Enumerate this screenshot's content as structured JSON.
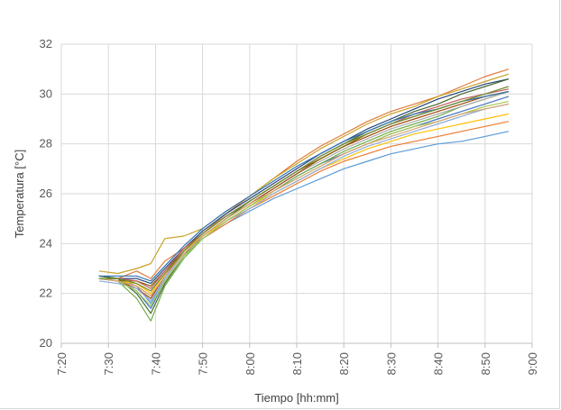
{
  "chart_data": {
    "type": "line",
    "title": "",
    "xlabel": "Tiempo [hh:mm]",
    "ylabel": "Temperatura [°C]",
    "x_ticks": [
      "7:20",
      "7:30",
      "7:40",
      "7:50",
      "8:00",
      "8:10",
      "8:20",
      "8:30",
      "8:40",
      "8:50",
      "9:00"
    ],
    "y_ticks": [
      "20",
      "22",
      "24",
      "26",
      "28",
      "30",
      "32"
    ],
    "xlim": [
      "7:20",
      "9:00"
    ],
    "ylim": [
      20,
      32
    ],
    "grid": "vertical-and-horizontal",
    "legend": "none",
    "x": [
      "7:28",
      "7:32",
      "7:36",
      "7:39",
      "7:42",
      "7:46",
      "7:50",
      "7:55",
      "8:00",
      "8:05",
      "8:10",
      "8:15",
      "8:20",
      "8:25",
      "8:30",
      "8:35",
      "8:40",
      "8:45",
      "8:50",
      "8:55"
    ],
    "series": [
      {
        "color": "#e07b39",
        "values": [
          22.7,
          22.6,
          22.9,
          22.6,
          23.3,
          23.8,
          24.4,
          25.2,
          25.9,
          26.6,
          27.3,
          27.9,
          28.4,
          28.9,
          29.3,
          29.6,
          29.9,
          30.3,
          30.7,
          31.0
        ]
      },
      {
        "color": "#c9a227",
        "values": [
          22.9,
          22.8,
          23.0,
          23.2,
          24.2,
          24.3,
          24.6,
          25.3,
          25.9,
          26.6,
          27.2,
          27.8,
          28.3,
          28.8,
          29.2,
          29.5,
          29.9,
          30.2,
          30.5,
          30.8
        ]
      },
      {
        "color": "#4472c4",
        "values": [
          22.6,
          22.5,
          22.1,
          21.4,
          22.5,
          23.5,
          24.2,
          24.9,
          25.5,
          26.1,
          26.7,
          27.2,
          27.6,
          28.0,
          28.4,
          28.7,
          29.0,
          29.3,
          29.6,
          29.9
        ]
      },
      {
        "color": "#70ad47",
        "values": [
          22.6,
          22.5,
          21.8,
          20.9,
          22.3,
          23.4,
          24.2,
          24.9,
          25.5,
          26.1,
          26.7,
          27.2,
          27.7,
          28.1,
          28.5,
          28.8,
          29.1,
          29.5,
          29.8,
          30.1
        ]
      },
      {
        "color": "#5b9bd5",
        "values": [
          22.7,
          22.6,
          22.3,
          21.6,
          22.6,
          23.6,
          24.2,
          24.8,
          25.3,
          25.8,
          26.2,
          26.6,
          27.0,
          27.3,
          27.6,
          27.8,
          28.0,
          28.1,
          28.3,
          28.5
        ]
      },
      {
        "color": "#a9a9a9",
        "values": [
          22.6,
          22.5,
          22.4,
          22.1,
          22.8,
          23.6,
          24.3,
          25.0,
          25.6,
          26.2,
          26.8,
          27.3,
          27.8,
          28.2,
          28.6,
          28.9,
          29.2,
          29.5,
          29.8,
          30.1
        ]
      },
      {
        "color": "#264478",
        "values": [
          22.7,
          22.6,
          22.6,
          22.4,
          23.0,
          23.8,
          24.5,
          25.2,
          25.8,
          26.4,
          27.0,
          27.6,
          28.1,
          28.6,
          29.0,
          29.4,
          29.8,
          30.1,
          30.4,
          30.6
        ]
      },
      {
        "color": "#9e480e",
        "values": [
          22.6,
          22.5,
          22.2,
          21.8,
          22.7,
          23.7,
          24.3,
          25.0,
          25.6,
          26.2,
          26.8,
          27.4,
          27.9,
          28.3,
          28.7,
          29.0,
          29.3,
          29.6,
          29.9,
          30.1
        ]
      },
      {
        "color": "#ed7d31",
        "values": [
          22.6,
          22.5,
          22.3,
          21.9,
          22.7,
          23.6,
          24.2,
          24.8,
          25.4,
          25.9,
          26.4,
          26.9,
          27.3,
          27.6,
          27.9,
          28.1,
          28.3,
          28.5,
          28.7,
          28.9
        ]
      },
      {
        "color": "#43682b",
        "values": [
          22.7,
          22.6,
          22.0,
          21.2,
          22.4,
          23.5,
          24.3,
          25.0,
          25.7,
          26.3,
          26.9,
          27.5,
          28.0,
          28.5,
          28.9,
          29.3,
          29.6,
          30.0,
          30.3,
          30.6
        ]
      },
      {
        "color": "#ffc000",
        "values": [
          22.6,
          22.5,
          22.4,
          22.0,
          22.8,
          23.7,
          24.3,
          24.9,
          25.5,
          26.0,
          26.5,
          27.0,
          27.4,
          27.8,
          28.1,
          28.4,
          28.6,
          28.8,
          29.0,
          29.2
        ]
      },
      {
        "color": "#7f6000",
        "values": [
          22.6,
          22.5,
          22.5,
          22.3,
          22.9,
          23.7,
          24.4,
          25.1,
          25.7,
          26.3,
          26.9,
          27.4,
          27.9,
          28.4,
          28.8,
          29.1,
          29.4,
          29.7,
          29.9,
          30.1
        ]
      },
      {
        "color": "#8faadc",
        "values": [
          22.5,
          22.4,
          22.2,
          21.7,
          22.6,
          23.6,
          24.2,
          24.9,
          25.4,
          26.0,
          26.5,
          27.0,
          27.5,
          27.9,
          28.2,
          28.5,
          28.8,
          29.1,
          29.4,
          29.6
        ]
      },
      {
        "color": "#c55a5a",
        "values": [
          22.6,
          22.6,
          22.5,
          22.2,
          22.9,
          23.8,
          24.4,
          25.1,
          25.7,
          26.3,
          26.9,
          27.5,
          28.0,
          28.4,
          28.8,
          29.2,
          29.5,
          29.8,
          30.0,
          30.2
        ]
      },
      {
        "color": "#a5c94a",
        "values": [
          22.6,
          22.5,
          22.1,
          21.5,
          22.5,
          23.5,
          24.2,
          24.9,
          25.5,
          26.1,
          26.6,
          27.1,
          27.6,
          28.0,
          28.4,
          28.7,
          28.9,
          29.2,
          29.5,
          29.7
        ]
      },
      {
        "color": "#2e75b6",
        "values": [
          22.7,
          22.7,
          22.7,
          22.5,
          23.1,
          23.9,
          24.6,
          25.3,
          25.9,
          26.5,
          27.1,
          27.6,
          28.1,
          28.5,
          28.9,
          29.2,
          29.4,
          29.7,
          29.9,
          30.1
        ]
      },
      {
        "color": "#d4a373",
        "values": [
          22.6,
          22.5,
          22.3,
          21.9,
          22.7,
          23.6,
          24.3,
          25.0,
          25.6,
          26.1,
          26.6,
          27.1,
          27.6,
          28.0,
          28.3,
          28.6,
          28.9,
          29.2,
          29.4,
          29.6
        ]
      },
      {
        "color": "#6a8d2f",
        "values": [
          22.6,
          22.6,
          22.4,
          22.1,
          22.8,
          23.7,
          24.4,
          25.1,
          25.7,
          26.3,
          26.9,
          27.5,
          28.0,
          28.4,
          28.8,
          29.1,
          29.4,
          29.7,
          30.0,
          30.3
        ]
      }
    ]
  }
}
